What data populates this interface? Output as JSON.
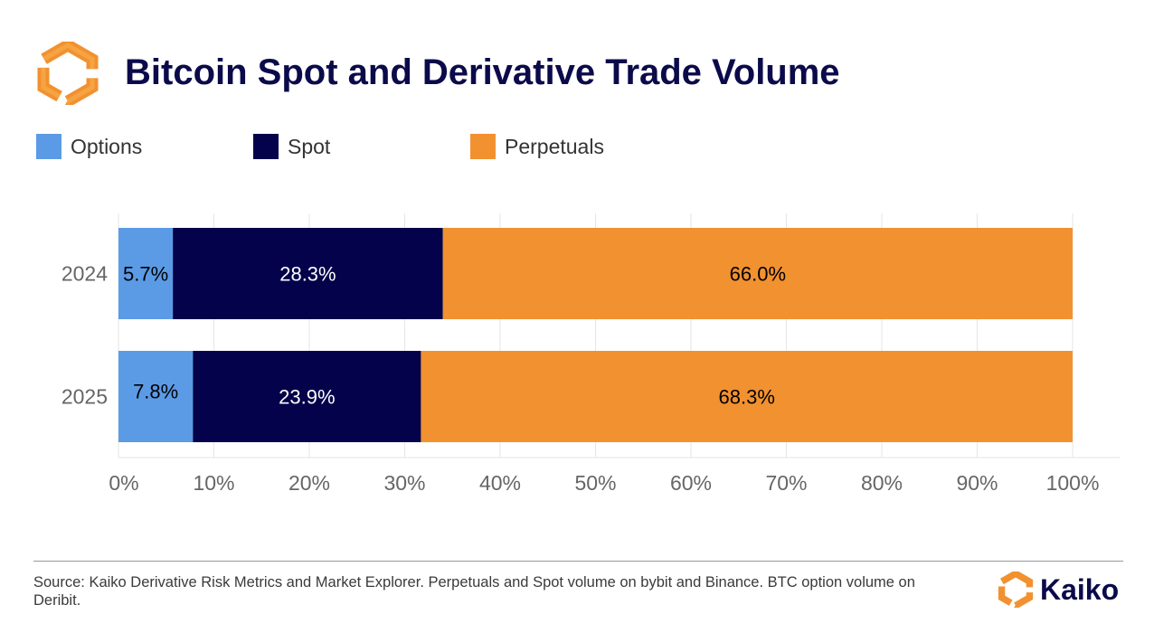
{
  "header": {
    "title": "Bitcoin Spot and Derivative Trade Volume",
    "logo_icon": "kaiko-hexagon-logo-icon"
  },
  "legend": [
    {
      "label": "Options",
      "color": "#5b9be6"
    },
    {
      "label": "Spot",
      "color": "#03024a"
    },
    {
      "label": "Perpetuals",
      "color": "#f29130"
    }
  ],
  "chart_data": {
    "type": "bar",
    "orientation": "horizontal",
    "stacked": true,
    "title": "Bitcoin Spot and Derivative Trade Volume",
    "categories": [
      "2024",
      "2025"
    ],
    "series": [
      {
        "name": "Options",
        "color": "#5b9be6",
        "label_color": "#000000",
        "values": [
          5.7,
          7.8
        ],
        "labels": [
          "5.7%",
          "7.8%"
        ]
      },
      {
        "name": "Spot",
        "color": "#03024a",
        "label_color": "#ffffff",
        "values": [
          28.3,
          23.9
        ],
        "labels": [
          "28.3%",
          "23.9%"
        ]
      },
      {
        "name": "Perpetuals",
        "color": "#f29130",
        "label_color": "#000000",
        "values": [
          66.0,
          68.3
        ],
        "labels": [
          "66.0%",
          "68.3%"
        ]
      }
    ],
    "xlim": [
      0,
      100
    ],
    "xticks": [
      0,
      10,
      20,
      30,
      40,
      50,
      60,
      70,
      80,
      90,
      100
    ],
    "xtick_labels": [
      "0%",
      "10%",
      "20%",
      "30%",
      "40%",
      "50%",
      "60%",
      "70%",
      "80%",
      "90%",
      "100%"
    ],
    "grid": true,
    "legend_position": "top-left"
  },
  "footer": {
    "source": "Source: Kaiko Derivative Risk Metrics and Market Explorer. Perpetuals and Spot volume on bybit and Binance. BTC option volume on Deribit.",
    "brand": "Kaiko",
    "brand_icon": "kaiko-hexagon-logo-icon"
  }
}
